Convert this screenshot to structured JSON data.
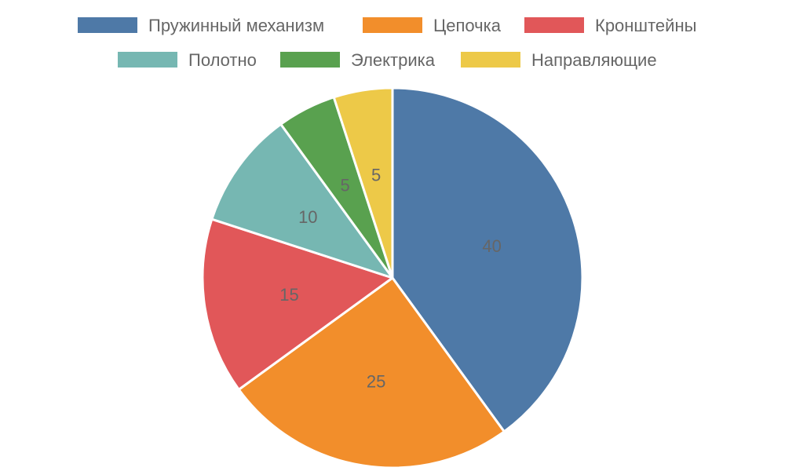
{
  "chart_data": {
    "type": "pie",
    "title": "",
    "legend_position": "top",
    "start_angle": "12 o'clock",
    "direction": "clockwise",
    "labels_shown": "values inside slices",
    "series": [
      {
        "name": "",
        "slices": [
          {
            "label": "Пружинный механизм",
            "value": 40,
            "color": "#4e79a7"
          },
          {
            "label": "Цепочка",
            "value": 25,
            "color": "#f28e2b"
          },
          {
            "label": "Кронштейны",
            "value": 15,
            "color": "#e15759"
          },
          {
            "label": "Полотно",
            "value": 10,
            "color": "#76b7b2"
          },
          {
            "label": "Электрика",
            "value": 5,
            "color": "#59a14f"
          },
          {
            "label": "Направляющие",
            "value": 5,
            "color": "#edc948"
          }
        ]
      }
    ]
  }
}
